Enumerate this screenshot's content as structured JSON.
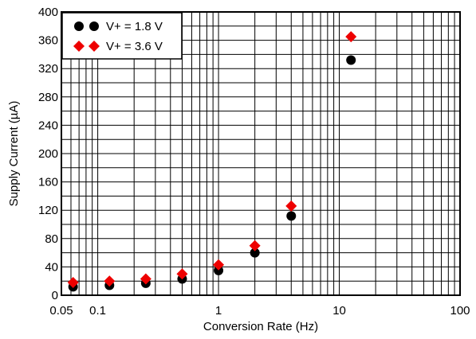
{
  "chart_data": {
    "type": "scatter",
    "xlabel": "Conversion Rate (Hz)",
    "ylabel": "Supply Current (µA)",
    "xscale": "log",
    "xlim": [
      0.05,
      100
    ],
    "ylim": [
      0,
      400
    ],
    "grid": true,
    "legend_position": "top-left",
    "x_ticks": [
      {
        "value": 0.05,
        "label": "0.05"
      },
      {
        "value": 0.1,
        "label": "0.1"
      },
      {
        "value": 1,
        "label": "1"
      },
      {
        "value": 10,
        "label": "10"
      },
      {
        "value": 100,
        "label": "100"
      }
    ],
    "y_ticks": [
      0,
      40,
      80,
      120,
      160,
      200,
      240,
      280,
      320,
      360,
      400
    ],
    "series": [
      {
        "name": "V+ = 1.8 V",
        "marker": "circle",
        "color": "#000000",
        "x": [
          0.0625,
          0.125,
          0.25,
          0.5,
          1,
          2,
          4,
          12.5
        ],
        "y": [
          12,
          14,
          17,
          23,
          35,
          60,
          112,
          332
        ]
      },
      {
        "name": "V+ = 3.6 V",
        "marker": "diamond",
        "color": "#ee0000",
        "x": [
          0.0625,
          0.125,
          0.25,
          0.5,
          1,
          2,
          4,
          12.5
        ],
        "y": [
          18,
          20,
          23,
          30,
          43,
          70,
          126,
          365
        ]
      }
    ]
  }
}
